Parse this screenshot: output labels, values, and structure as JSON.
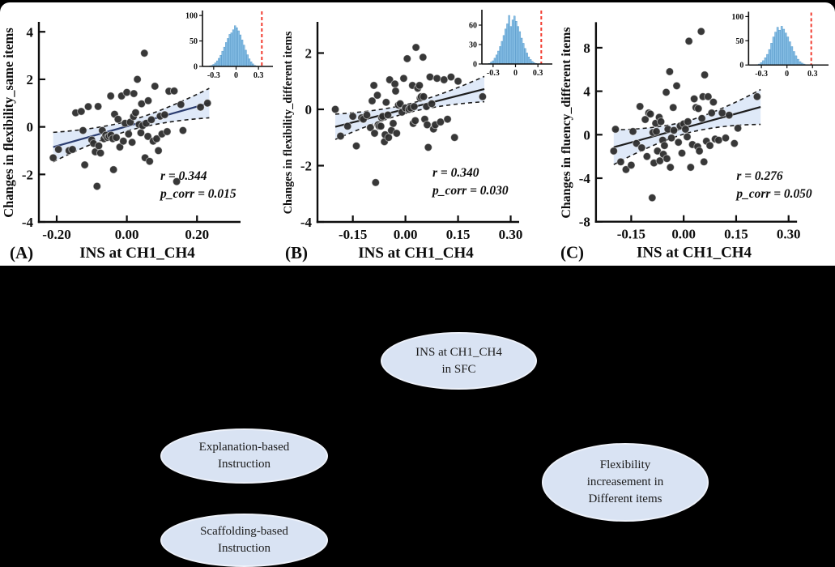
{
  "colors": {
    "frame_bg": "#000000",
    "panel_bg": "#ffffff",
    "axis": "#0d0d0d",
    "point": "#2d2d2d",
    "band_fill": "#dbe7f7",
    "band_edge": "#1a1a1a",
    "hist_fill": "#85bde4",
    "hist_edge": "#4e93c6",
    "red_line": "#f23b2e",
    "ellipse_fill": "#d9e3f3",
    "ellipse_text": "#1b1b1b"
  },
  "chart_data": [
    {
      "type": "scatter",
      "panel_label": "(A)",
      "xlabel": "INS at CH1_CH4",
      "ylabel": "Changes in flexibility_same items",
      "xlim": [
        -0.2508,
        0.3103
      ],
      "ylim": [
        -4,
        4.35
      ],
      "xticks": {
        "values": [
          -0.2,
          0.0,
          0.2
        ],
        "labels": [
          "-0.20",
          "0.00",
          "0.20"
        ]
      },
      "yticks": {
        "values": [
          -4,
          -2,
          0,
          2,
          4
        ],
        "labels": [
          "-4",
          "-2",
          "0",
          "2",
          "4"
        ]
      },
      "stats": {
        "r": "r = 0.344",
        "p": "p_corr = 0.015"
      },
      "regression": {
        "x1": -0.21,
        "y1": -0.85,
        "x2": 0.235,
        "y2": 1.0,
        "half_end": 0.62,
        "half_mid": 0.2,
        "line_color": "#2a3c6f"
      },
      "points": [
        [
          -0.21,
          -1.3
        ],
        [
          -0.195,
          -0.95
        ],
        [
          -0.165,
          -1.0
        ],
        [
          -0.155,
          -0.95
        ],
        [
          -0.146,
          0.59
        ],
        [
          -0.13,
          0.65
        ],
        [
          -0.125,
          -0.15
        ],
        [
          -0.12,
          -1.6
        ],
        [
          -0.11,
          0.85
        ],
        [
          -0.1,
          -0.55
        ],
        [
          -0.095,
          -0.7
        ],
        [
          -0.09,
          -1.05
        ],
        [
          -0.085,
          -2.5
        ],
        [
          -0.082,
          0.86
        ],
        [
          -0.08,
          -0.8
        ],
        [
          -0.075,
          -1.1
        ],
        [
          -0.07,
          -0.15
        ],
        [
          -0.065,
          -0.5
        ],
        [
          -0.06,
          -0.35
        ],
        [
          -0.055,
          -0.45
        ],
        [
          -0.05,
          -0.4
        ],
        [
          -0.046,
          1.3
        ],
        [
          -0.045,
          -0.35
        ],
        [
          -0.04,
          -0.5
        ],
        [
          -0.038,
          -1.8
        ],
        [
          -0.035,
          0.53
        ],
        [
          -0.03,
          -0.45
        ],
        [
          -0.025,
          0.32
        ],
        [
          -0.02,
          -0.85
        ],
        [
          -0.015,
          1.3
        ],
        [
          -0.01,
          -0.6
        ],
        [
          -0.005,
          0.15
        ],
        [
          0.0,
          1.45
        ],
        [
          0.005,
          -0.3
        ],
        [
          0.01,
          0.2
        ],
        [
          0.015,
          -0.65
        ],
        [
          0.019,
          0.44
        ],
        [
          0.02,
          1.4
        ],
        [
          0.025,
          0.6
        ],
        [
          0.03,
          2.0
        ],
        [
          0.035,
          0.1
        ],
        [
          0.04,
          -0.25
        ],
        [
          0.042,
          0.97
        ],
        [
          0.045,
          0.05
        ],
        [
          0.05,
          3.1
        ],
        [
          0.052,
          -1.3
        ],
        [
          0.055,
          0.15
        ],
        [
          0.06,
          -0.4
        ],
        [
          0.061,
          1.1
        ],
        [
          0.065,
          -1.45
        ],
        [
          0.07,
          0.3
        ],
        [
          0.075,
          -0.6
        ],
        [
          0.08,
          1.71
        ],
        [
          0.085,
          -0.5
        ],
        [
          0.09,
          -1.0
        ],
        [
          0.095,
          0.45
        ],
        [
          0.1,
          -0.3
        ],
        [
          0.108,
          0.51
        ],
        [
          0.115,
          -0.2
        ],
        [
          0.12,
          1.5
        ],
        [
          0.135,
          1.51
        ],
        [
          0.142,
          -2.3
        ],
        [
          0.154,
          0.94
        ],
        [
          0.16,
          -0.15
        ],
        [
          0.21,
          0.83
        ],
        [
          0.23,
          1.0
        ]
      ],
      "inset": {
        "type": "histogram",
        "ylim": [
          0,
          105
        ],
        "yticks": {
          "values": [
            0,
            50,
            100
          ],
          "labels": [
            "0",
            "50",
            "100"
          ]
        },
        "xlim": [
          -0.45,
          0.45
        ],
        "xticks": {
          "values": [
            -0.3,
            0,
            0.3
          ],
          "labels": [
            "-0.3",
            "0",
            "0.3"
          ]
        },
        "bin_start": -0.36,
        "bin_step": 0.024,
        "heights": [
          1,
          2,
          4,
          7,
          11,
          16,
          22,
          30,
          38,
          47,
          55,
          63,
          66,
          72,
          80,
          76,
          70,
          62,
          52,
          42,
          32,
          23,
          15,
          9,
          5,
          2,
          1
        ],
        "red_line_x": 0.345
      }
    },
    {
      "type": "scatter",
      "panel_label": "(B)",
      "xlabel": "INS at CH1_CH4",
      "ylabel": "Changes in flexibility_different items",
      "xlim": [
        -0.2508,
        0.3103
      ],
      "ylim": [
        -4,
        3.05
      ],
      "xticks": {
        "values": [
          -0.15,
          0.0,
          0.15,
          0.3
        ],
        "labels": [
          "-0.15",
          "0.00",
          "0.15",
          "0.30"
        ]
      },
      "yticks": {
        "values": [
          -4,
          -2,
          0,
          2
        ],
        "labels": [
          "-4",
          "-2",
          "0",
          "2"
        ]
      },
      "stats": {
        "r": "r = 0.340",
        "p": "p_corr = 0.030"
      },
      "regression": {
        "x1": -0.2,
        "y1": -0.62,
        "x2": 0.225,
        "y2": 0.72,
        "half_end": 0.45,
        "half_mid": 0.15,
        "line_color": "#1c1c1c"
      },
      "points": [
        [
          -0.2,
          0.0
        ],
        [
          -0.185,
          -0.95
        ],
        [
          -0.165,
          -0.6
        ],
        [
          -0.15,
          -0.25
        ],
        [
          -0.14,
          -1.3
        ],
        [
          -0.125,
          -0.3
        ],
        [
          -0.12,
          -0.35
        ],
        [
          -0.11,
          -0.2
        ],
        [
          -0.1,
          -0.65
        ],
        [
          -0.095,
          0.3
        ],
        [
          -0.09,
          0.85
        ],
        [
          -0.088,
          -0.85
        ],
        [
          -0.085,
          -2.6
        ],
        [
          -0.08,
          0.5
        ],
        [
          -0.078,
          -0.55
        ],
        [
          -0.075,
          -0.6
        ],
        [
          -0.07,
          -0.6
        ],
        [
          -0.068,
          -0.3
        ],
        [
          -0.065,
          -0.25
        ],
        [
          -0.06,
          -1.15
        ],
        [
          -0.058,
          -0.9
        ],
        [
          -0.055,
          0.25
        ],
        [
          -0.05,
          -0.2
        ],
        [
          -0.048,
          -1.0
        ],
        [
          -0.045,
          1.05
        ],
        [
          -0.04,
          -0.75
        ],
        [
          -0.035,
          -0.5
        ],
        [
          -0.03,
          0.9
        ],
        [
          -0.028,
          0.65
        ],
        [
          -0.025,
          -0.85
        ],
        [
          -0.02,
          0.15
        ],
        [
          -0.015,
          0.2
        ],
        [
          -0.01,
          -0.1
        ],
        [
          -0.005,
          1.1
        ],
        [
          0.0,
          0.05
        ],
        [
          0.005,
          1.8
        ],
        [
          0.01,
          0.0
        ],
        [
          0.015,
          0.05
        ],
        [
          0.02,
          0.85
        ],
        [
          0.022,
          -0.5
        ],
        [
          0.025,
          0.1
        ],
        [
          0.028,
          -0.4
        ],
        [
          0.03,
          2.2
        ],
        [
          0.035,
          0.75
        ],
        [
          0.04,
          0.85
        ],
        [
          0.042,
          0.4
        ],
        [
          0.045,
          0.45
        ],
        [
          0.05,
          1.85
        ],
        [
          0.052,
          0.45
        ],
        [
          0.055,
          -0.35
        ],
        [
          0.06,
          0.1
        ],
        [
          0.062,
          -0.55
        ],
        [
          0.065,
          -1.35
        ],
        [
          0.07,
          1.15
        ],
        [
          0.075,
          0.2
        ],
        [
          0.08,
          -0.7
        ],
        [
          0.085,
          -0.55
        ],
        [
          0.09,
          1.1
        ],
        [
          0.1,
          -0.45
        ],
        [
          0.11,
          1.05
        ],
        [
          0.12,
          -0.35
        ],
        [
          0.13,
          1.15
        ],
        [
          0.14,
          -1.0
        ],
        [
          0.15,
          1.0
        ],
        [
          0.22,
          0.45
        ]
      ],
      "inset": {
        "type": "histogram",
        "ylim": [
          0,
          80
        ],
        "yticks": {
          "values": [
            0,
            30,
            60
          ],
          "labels": [
            "0",
            "30",
            "60"
          ]
        },
        "xlim": [
          -0.45,
          0.45
        ],
        "xticks": {
          "values": [
            -0.3,
            0,
            0.3
          ],
          "labels": [
            "-0.3",
            "0",
            "0.3"
          ]
        },
        "bin_start": -0.36,
        "bin_step": 0.024,
        "heights": [
          1,
          3,
          5,
          9,
          14,
          20,
          27,
          35,
          44,
          54,
          62,
          75,
          58,
          68,
          74,
          66,
          58,
          50,
          40,
          32,
          24,
          17,
          11,
          7,
          4,
          2,
          1
        ],
        "red_line_x": 0.345
      }
    },
    {
      "type": "scatter",
      "panel_label": "(C)",
      "xlabel": "INS at CH1_CH4",
      "ylabel": "Changes in fluency_different items",
      "xlim": [
        -0.2508,
        0.3103
      ],
      "ylim": [
        -8,
        10.2
      ],
      "xticks": {
        "values": [
          -0.15,
          0.0,
          0.15,
          0.3
        ],
        "labels": [
          "-0.15",
          "0.00",
          "0.15",
          "0.30"
        ]
      },
      "yticks": {
        "values": [
          -8,
          -4,
          0,
          4,
          8
        ],
        "labels": [
          "-8",
          "-4",
          "0",
          "4",
          "8"
        ]
      },
      "stats": {
        "r": "r = 0.276",
        "p": "p_corr = 0.050"
      },
      "regression": {
        "x1": -0.2,
        "y1": -1.15,
        "x2": 0.22,
        "y2": 2.55,
        "half_end": 1.6,
        "half_mid": 0.55,
        "line_color": "#1c1c1c"
      },
      "points": [
        [
          -0.2,
          -1.5
        ],
        [
          -0.195,
          0.5
        ],
        [
          -0.18,
          -2.5
        ],
        [
          -0.165,
          -3.2
        ],
        [
          -0.15,
          -2.8
        ],
        [
          -0.145,
          0.3
        ],
        [
          -0.135,
          -0.8
        ],
        [
          -0.125,
          2.6
        ],
        [
          -0.12,
          -1.2
        ],
        [
          -0.11,
          1.4
        ],
        [
          -0.105,
          -2.0
        ],
        [
          -0.1,
          2.0
        ],
        [
          -0.095,
          1.9
        ],
        [
          -0.09,
          -5.8
        ],
        [
          -0.088,
          0.2
        ],
        [
          -0.085,
          -2.6
        ],
        [
          -0.08,
          1.05
        ],
        [
          -0.078,
          0.3
        ],
        [
          -0.075,
          -1.5
        ],
        [
          -0.07,
          1.6
        ],
        [
          -0.068,
          -2.4
        ],
        [
          -0.065,
          1.2
        ],
        [
          -0.06,
          -0.5
        ],
        [
          -0.058,
          -1.8
        ],
        [
          -0.055,
          -1.0
        ],
        [
          -0.05,
          3.9
        ],
        [
          -0.048,
          -2.2
        ],
        [
          -0.045,
          0.5
        ],
        [
          -0.04,
          5.8
        ],
        [
          -0.038,
          -3.0
        ],
        [
          -0.035,
          -0.3
        ],
        [
          -0.03,
          2.5
        ],
        [
          -0.028,
          0.4
        ],
        [
          -0.02,
          4.5
        ],
        [
          -0.015,
          -0.7
        ],
        [
          -0.01,
          0.8
        ],
        [
          -0.005,
          -1.7
        ],
        [
          0.0,
          1.0
        ],
        [
          0.005,
          0.5
        ],
        [
          0.01,
          -0.2
        ],
        [
          0.012,
          1.2
        ],
        [
          0.015,
          8.6
        ],
        [
          0.02,
          -3.0
        ],
        [
          0.025,
          -0.9
        ],
        [
          0.03,
          3.3
        ],
        [
          0.035,
          2.5
        ],
        [
          0.04,
          -1.1
        ],
        [
          0.042,
          2.4
        ],
        [
          0.045,
          -1.5
        ],
        [
          0.05,
          9.5
        ],
        [
          0.052,
          1.5
        ],
        [
          0.055,
          3.5
        ],
        [
          0.058,
          -2.5
        ],
        [
          0.06,
          5.5
        ],
        [
          0.065,
          -0.6
        ],
        [
          0.07,
          3.5
        ],
        [
          0.075,
          -1.0
        ],
        [
          0.08,
          2.0
        ],
        [
          0.085,
          3.0
        ],
        [
          0.09,
          -0.4
        ],
        [
          0.1,
          -0.5
        ],
        [
          0.11,
          2.0
        ],
        [
          0.12,
          -0.3
        ],
        [
          0.13,
          1.8
        ],
        [
          0.145,
          -0.8
        ],
        [
          0.155,
          0.6
        ],
        [
          0.21,
          3.5
        ]
      ],
      "inset": {
        "type": "histogram",
        "ylim": [
          0,
          105
        ],
        "yticks": {
          "values": [
            0,
            50,
            100
          ],
          "labels": [
            "0",
            "50",
            "100"
          ]
        },
        "xlim": [
          -0.45,
          0.45
        ],
        "xticks": {
          "values": [
            -0.3,
            0,
            0.3
          ],
          "labels": [
            "-0.3",
            "0",
            "0.3"
          ]
        },
        "bin_start": -0.36,
        "bin_step": 0.024,
        "heights": [
          1,
          2,
          5,
          9,
          15,
          22,
          32,
          45,
          58,
          68,
          78,
          72,
          80,
          74,
          66,
          58,
          48,
          38,
          28,
          19,
          12,
          7,
          4,
          2,
          1,
          1,
          1
        ],
        "red_line_x": 0.285
      }
    }
  ],
  "diagram": {
    "nodes": [
      {
        "id": "ins",
        "lines": [
          "INS at CH1_CH4",
          "in SFC"
        ]
      },
      {
        "id": "explanation",
        "lines": [
          "Explanation-based",
          "Instruction"
        ]
      },
      {
        "id": "scaffolding",
        "lines": [
          "Scaffolding-based",
          "Instruction"
        ]
      },
      {
        "id": "flexibility",
        "lines": [
          "Flexibility",
          "increasement in",
          "Different items"
        ]
      }
    ]
  }
}
